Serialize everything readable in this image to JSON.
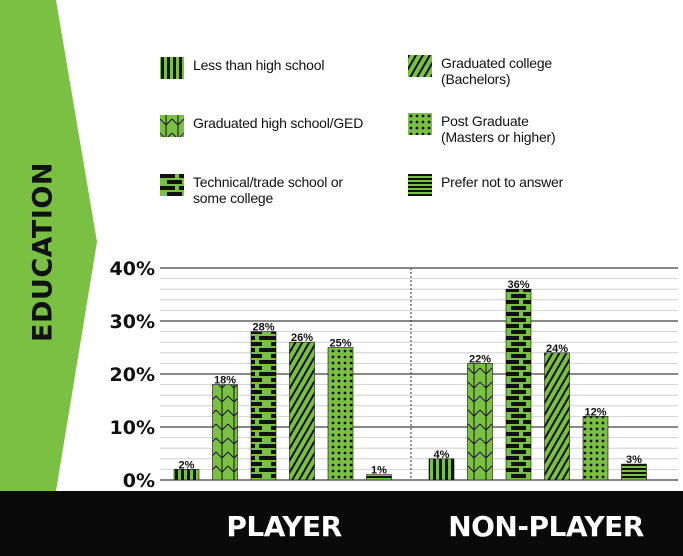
{
  "side_label": "EDUCATION",
  "colors": {
    "green": "#7ac143",
    "black": "#111111",
    "band": "#0a0a0a",
    "white": "#ffffff"
  },
  "chart_data": {
    "type": "bar",
    "ylim": [
      0,
      40
    ],
    "yticks": [
      0,
      10,
      20,
      30,
      40
    ],
    "ytick_labels": [
      "0%",
      "10%",
      "20%",
      "30%",
      "40%"
    ],
    "groups": [
      "PLAYER",
      "NON-PLAYER"
    ],
    "series": [
      {
        "name": "Less than high school",
        "pattern": "vstripes",
        "values": [
          2,
          4
        ],
        "labels": [
          "2%",
          "4%"
        ]
      },
      {
        "name": "Graduated high school/GED",
        "pattern": "chevron",
        "values": [
          18,
          22
        ],
        "labels": [
          "18%",
          "22%"
        ]
      },
      {
        "name": "Technical/trade school or\nsome college",
        "pattern": "dashes",
        "values": [
          28,
          36
        ],
        "labels": [
          "28%",
          "36%"
        ]
      },
      {
        "name": "Graduated college\n(Bachelors)",
        "pattern": "diagonal",
        "values": [
          26,
          24
        ],
        "labels": [
          "26%",
          "24%"
        ]
      },
      {
        "name": "Post Graduate\n(Masters or higher)",
        "pattern": "dots",
        "values": [
          25,
          12
        ],
        "labels": [
          "25%",
          "12%"
        ]
      },
      {
        "name": "Prefer not to answer",
        "pattern": "hstripes",
        "values": [
          1,
          3
        ],
        "labels": [
          "1%",
          "3%"
        ]
      }
    ]
  }
}
